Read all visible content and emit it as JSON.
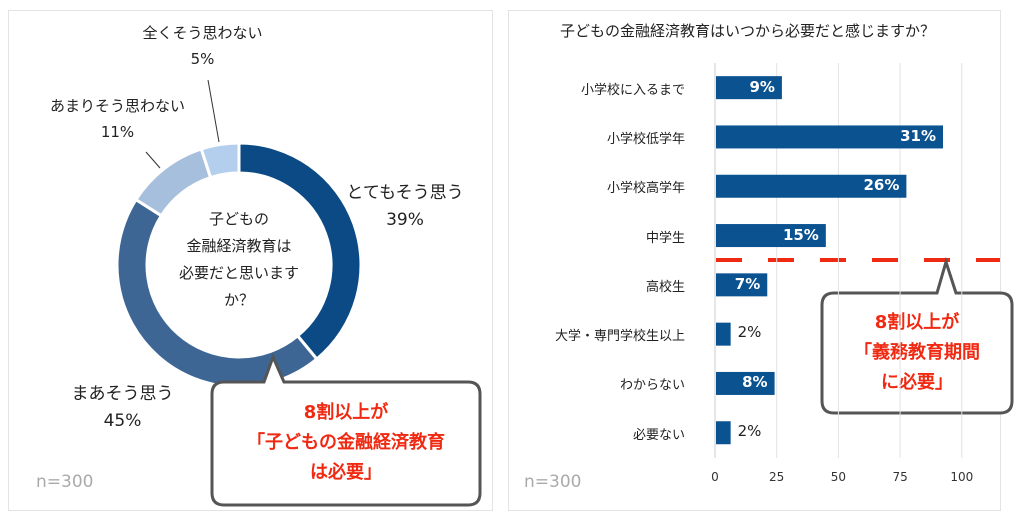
{
  "chart_data": [
    {
      "type": "pie",
      "variant": "donut",
      "center_text": [
        "子どもの",
        "金融経済教育は",
        "必要だと思います",
        "か？"
      ],
      "slices": [
        {
          "label": "とてもそう思う",
          "value": 39,
          "display": "39%",
          "color": "#0b4a85"
        },
        {
          "label": "まあそう思う",
          "value": 45,
          "display": "45%",
          "color": "#3d6695"
        },
        {
          "label": "あまりそう思わない",
          "value": 11,
          "display": "11%",
          "color": "#a6bfdd"
        },
        {
          "label": "全くそう思わない",
          "value": 5,
          "display": "5%",
          "color": "#b4cfee"
        }
      ],
      "sample": "n=300",
      "callout": [
        "8割以上が",
        "「子どもの金融経済教育",
        "は必要」"
      ]
    },
    {
      "type": "bar",
      "orientation": "horizontal",
      "title": "子どもの金融経済教育はいつから必要だと感じますか？",
      "categories": [
        "小学校に入るまで",
        "小学校低学年",
        "小学校高学年",
        "中学生",
        "高校生",
        "大学・専門学校生以上",
        "わからない",
        "必要ない"
      ],
      "values": [
        9,
        31,
        26,
        15,
        7,
        2,
        8,
        2
      ],
      "value_labels": [
        "9%",
        "31%",
        "26%",
        "15%",
        "7%",
        "2%",
        "8%",
        "2%"
      ],
      "xticks": [
        "0",
        "25",
        "50",
        "75",
        "100"
      ],
      "grid": true,
      "bar_color": "#0b5291",
      "divider_color": "#f02a12",
      "sample": "n=300",
      "callout": [
        "8割以上が",
        "「義務教育期間",
        "に必要」"
      ]
    }
  ]
}
